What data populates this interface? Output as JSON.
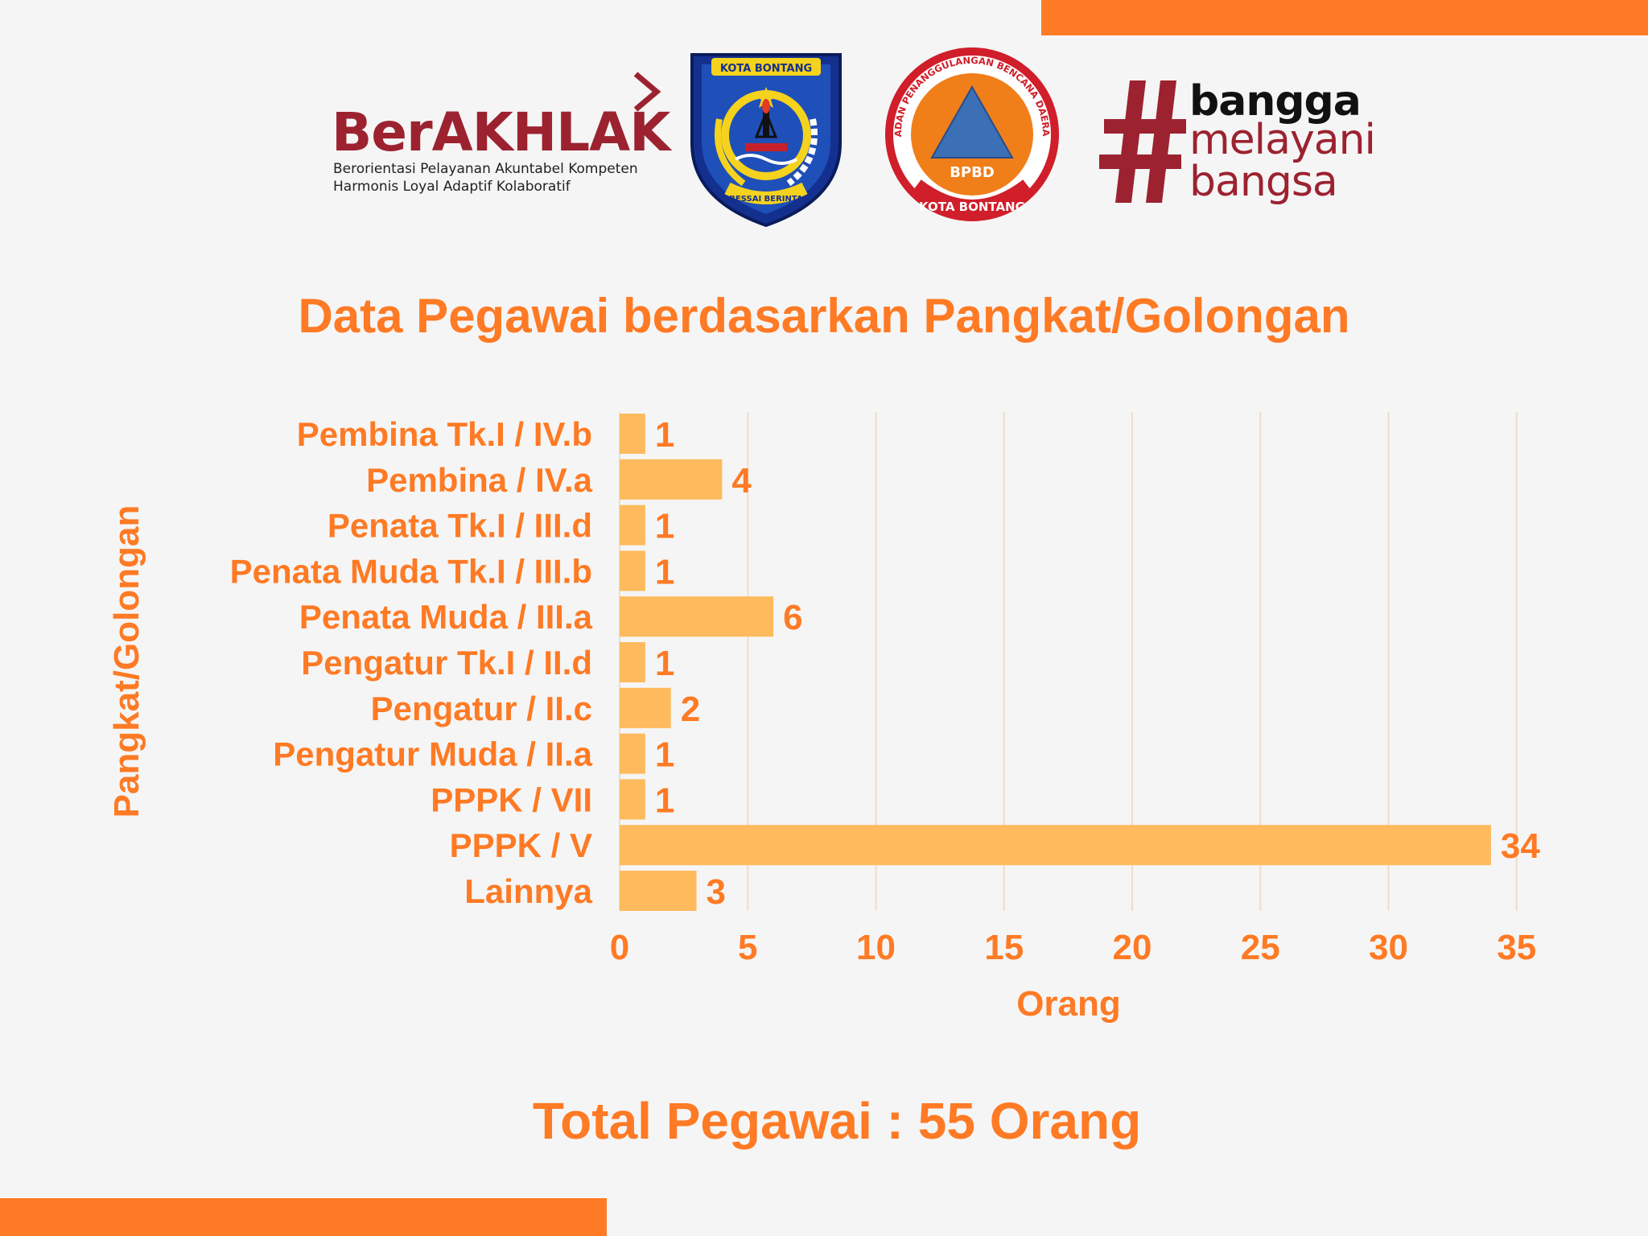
{
  "logos": {
    "berakhlak": {
      "word": "BerAKHLAK",
      "tagline_1": "Berorientasi Pelayanan Akuntabel Kompeten",
      "tagline_2": "Harmonis Loyal Adaptif Kolaboratif"
    },
    "kota_bontang": {
      "top_text": "KOTA BONTANG",
      "bottom_text": "BESSAI BERINTA"
    },
    "bpbd": {
      "ring_text": "BADAN PENANGGULANGAN BENCANA DAERAH",
      "center_text": "BPBD",
      "bottom_text": "KOTA BONTANG"
    },
    "bangga": {
      "hash": "#",
      "line_1": "bangga",
      "line_2": "melayani",
      "line_3": "bangsa"
    }
  },
  "colors": {
    "accent": "#fe7a24",
    "bar": "#feba5c",
    "background": "#f5f5f5",
    "grid": "#f2dcc8"
  },
  "chart_data": {
    "type": "bar",
    "orientation": "horizontal",
    "title": "Data Pegawai berdasarkan Pangkat/Golongan",
    "xlabel": "Orang",
    "ylabel": "Pangkat/Golongan",
    "categories": [
      "Pembina Tk.I / IV.b",
      "Pembina / IV.a",
      "Penata Tk.I / III.d",
      "Penata Muda Tk.I / III.b",
      "Penata Muda / III.a",
      "Pengatur Tk.I / II.d",
      "Pengatur / II.c",
      "Pengatur Muda / II.a",
      "PPPK / VII",
      "PPPK / V",
      "Lainnya"
    ],
    "values": [
      1,
      4,
      1,
      1,
      6,
      1,
      2,
      1,
      1,
      34,
      3
    ],
    "xlim": [
      0,
      35
    ],
    "xticks": [
      0,
      5,
      10,
      15,
      20,
      25,
      30,
      35
    ],
    "grid": "vertical",
    "data_labels": true
  },
  "summary": {
    "total_text": "Total Pegawai : 55 Orang"
  }
}
